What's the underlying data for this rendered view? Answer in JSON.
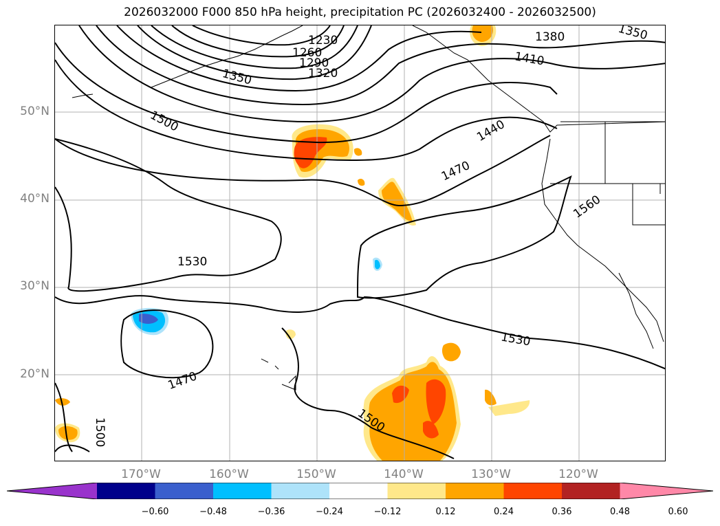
{
  "title": "2026032000 F000 850 hPa height, precipitation PC (2026032400 - 2026032500)",
  "axes": {
    "lat_labels": [
      "50°N",
      "40°N",
      "30°N",
      "20°N"
    ],
    "lon_labels": [
      "170°W",
      "160°W",
      "150°W",
      "140°W",
      "130°W",
      "120°W"
    ]
  },
  "contour_labels": [
    "1230",
    "1260",
    "1290",
    "1320",
    "1350",
    "1380",
    "1350",
    "1410",
    "1440",
    "1470",
    "1500",
    "1530",
    "1560",
    "1530",
    "1470",
    "1500",
    "1500"
  ],
  "colorbar": {
    "ticks": [
      "−0.60",
      "−0.48",
      "−0.36",
      "−0.24",
      "−0.12",
      "0.12",
      "0.24",
      "0.36",
      "0.48",
      "0.60"
    ],
    "colors": [
      "#9933cc",
      "#00008b",
      "#3a5fcd",
      "#00bfff",
      "#aee3fa",
      "#ffffff",
      "#ffe88a",
      "#ffa500",
      "#ff4500",
      "#b22222",
      "#ff88a8"
    ]
  },
  "colors": {
    "contour": "#000000",
    "grid": "#b0b0b0",
    "axis_label": "#808080"
  }
}
